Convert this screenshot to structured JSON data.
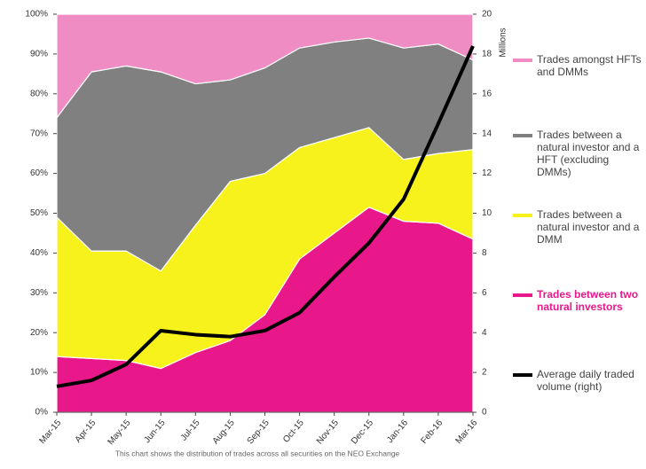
{
  "chart_data": {
    "type": "stacked-area",
    "categories": [
      "Mar-15",
      "Apr-15",
      "May-15",
      "Jun-15",
      "Jul-15",
      "Aug-15",
      "Sep-15",
      "Oct-15",
      "Nov-15",
      "Dec-15",
      "Jan-16",
      "Feb-16",
      "Mar-16"
    ],
    "series": [
      {
        "name": "Trades between two natural investors",
        "color": "#e8188a",
        "values": [
          14,
          13.5,
          13,
          11,
          15,
          18,
          24.5,
          38.5,
          45,
          51.5,
          48,
          47.5,
          43.5
        ]
      },
      {
        "name": "Trades between a natural investor and a DMM",
        "color": "#f7f21c",
        "values": [
          35,
          27,
          27.5,
          24.5,
          32,
          40,
          35.5,
          28,
          24,
          20,
          15.5,
          17.5,
          22.5
        ]
      },
      {
        "name": "Trades between a natural investor and a HFT (excluding DMMs)",
        "color": "#808080",
        "values": [
          25,
          45,
          46.5,
          50,
          35.5,
          25.5,
          26.5,
          25,
          24,
          22.5,
          28,
          27.5,
          22.5
        ]
      },
      {
        "name": "Trades amongst HFTs and DMMs",
        "color": "#f08cc4",
        "values": [
          26,
          14.5,
          13,
          14.5,
          17.5,
          16.5,
          13.5,
          8.5,
          7,
          6,
          8.5,
          7.5,
          11.5
        ]
      },
      {
        "name": "Average daily traded volume (right)",
        "color": "#000000",
        "axis": "y2",
        "type": "line",
        "values": [
          1.3,
          1.6,
          2.4,
          4.1,
          3.9,
          3.8,
          4.1,
          5.0,
          6.8,
          8.5,
          10.7,
          14.5,
          18.4
        ]
      }
    ],
    "ylim": [
      0,
      100
    ],
    "yticks": [
      {
        "value": 0,
        "label": "0%"
      },
      {
        "value": 10,
        "label": "10%"
      },
      {
        "value": 20,
        "label": "20%"
      },
      {
        "value": 30,
        "label": "30%"
      },
      {
        "value": 40,
        "label": "40%"
      },
      {
        "value": 50,
        "label": "50%"
      },
      {
        "value": 60,
        "label": "60%"
      },
      {
        "value": 70,
        "label": "70%"
      },
      {
        "value": 80,
        "label": "80%"
      },
      {
        "value": 90,
        "label": "90%"
      },
      {
        "value": 100,
        "label": "100%"
      }
    ],
    "y2label": "Millions",
    "y2lim": [
      0,
      20
    ],
    "y2ticks": [
      0,
      2,
      4,
      6,
      8,
      10,
      12,
      14,
      16,
      18,
      20
    ],
    "footnote": "This chart shows the distribution of trades across all securities on the NEO Exchange"
  }
}
